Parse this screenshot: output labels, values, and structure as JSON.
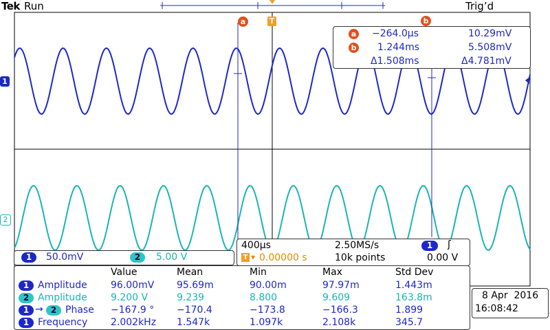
{
  "header": {
    "brand": "Tek",
    "status": "Run",
    "trigger_state": "Trig’d"
  },
  "markers": {
    "cursor_a": "a",
    "cursor_b": "b",
    "trigger": "T"
  },
  "cursor_readout": {
    "a_time": "−264.0µs",
    "a_volt": "10.29mV",
    "b_time": "1.244ms",
    "b_volt": "5.508mV",
    "delta_time": "Δ1.508ms",
    "delta_volt": "Δ4.781mV"
  },
  "channels": {
    "ch1": {
      "num": "1",
      "scale": "50.0mV",
      "color": "#1d27c8"
    },
    "ch2": {
      "num": "2",
      "scale": "5.00 V",
      "color": "#19b4b4"
    }
  },
  "timebase": {
    "per_div": "400µs",
    "sample_rate": "2.50MS/s",
    "trigger_pos": "0.00000 s",
    "record_length": "10k points",
    "trigger_source": "1",
    "trigger_level": "0.00 V"
  },
  "measurements": {
    "headers": [
      "Value",
      "Mean",
      "Min",
      "Max",
      "Std Dev"
    ],
    "rows": [
      {
        "ch": "1",
        "label": "Amplitude",
        "value": "96.00mV",
        "mean": "95.69m",
        "min": "90.00m",
        "max": "97.97m",
        "std": "1.443m"
      },
      {
        "ch": "2",
        "label": "Amplitude",
        "value": "9.200 V",
        "mean": "9.239",
        "min": "8.800",
        "max": "9.609",
        "std": "163.8m"
      },
      {
        "ch": "1",
        "ch2": "2",
        "label": "Phase",
        "value": "−167.9 °",
        "mean": "−170.4",
        "min": "−173.8",
        "max": "−166.3",
        "std": "1.899"
      },
      {
        "ch": "1",
        "label": "Frequency",
        "value": "2.002kHz",
        "mean": "1.547k",
        "min": "1.097k",
        "max": "2.108k",
        "std": "345.7"
      }
    ]
  },
  "datetime": {
    "date": "8 Apr  2016",
    "time": "16:08:42"
  }
}
